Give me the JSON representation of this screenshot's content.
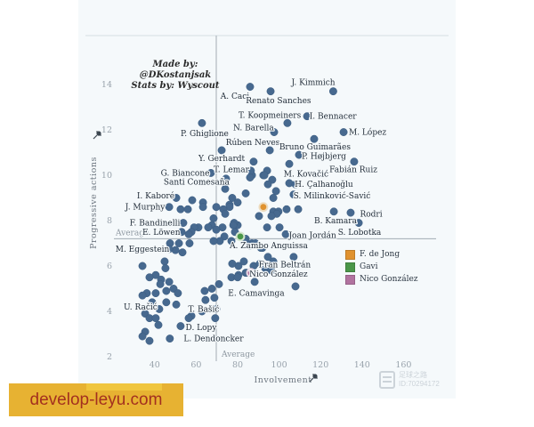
{
  "credit": {
    "lines": [
      "Made by:",
      "@DKostanjsak",
      "Stats by: Wyscout"
    ]
  },
  "watermark_site": {
    "text": "develop-leyu.com",
    "bg": "#e7b232",
    "bg_light": "#f0c63e",
    "text_color": "#a3301f"
  },
  "watermark_logo": {
    "line1": "足球之路",
    "line2": "ID:70294172"
  },
  "chart_data": {
    "type": "scatter",
    "xlabel": "Involvement",
    "ylabel": "Progressive actions",
    "x_ticks": [
      40,
      60,
      80,
      100,
      120,
      140,
      160
    ],
    "y_ticks": [
      2,
      4,
      6,
      8,
      10,
      12,
      14
    ],
    "xlim": [
      20,
      176
    ],
    "ylim": [
      1.8,
      16.2
    ],
    "grid": false,
    "average_x": {
      "value": 69.7,
      "label": "Average"
    },
    "average_y": {
      "value": 7.2,
      "label": "Average"
    },
    "dot_color": "#47698f",
    "legend": {
      "position": "center-right",
      "items": [
        {
          "label": "F. de Jong",
          "color": "#e0922f"
        },
        {
          "label": "Gavi",
          "color": "#4a9648"
        },
        {
          "label": "Nico González",
          "color": "#b1739f"
        }
      ]
    },
    "highlights": [
      {
        "name": "F. de Jong",
        "x": 92.4,
        "y": 8.6,
        "color": "#e0922f",
        "halo": "#eedcbe"
      },
      {
        "name": "Gavi",
        "x": 81.3,
        "y": 7.3,
        "color": "#4a9648",
        "halo": "#d5e6d0"
      },
      {
        "name": "Nico González",
        "x": 86.4,
        "y": 5.7,
        "color": "#b1739f",
        "halo": "#e8d6e2",
        "lx": 99.7,
        "ly": 5.65
      }
    ],
    "players": [
      {
        "name": "J. Kimmich",
        "x": 126.1,
        "y": 13.7,
        "lx": 116.5,
        "ly": 14.1
      },
      {
        "name": "A. Caci",
        "x": 86.0,
        "y": 13.9,
        "lx": 78.7,
        "ly": 13.5
      },
      {
        "name": "Renato Sanches",
        "x": 95.9,
        "y": 13.7,
        "lx": 99.7,
        "ly": 13.3
      },
      {
        "name": "T. Koopmeiners",
        "x": 104.0,
        "y": 12.3,
        "lx": 95.5,
        "ly": 12.65
      },
      {
        "name": "I. Bennacer",
        "x": 113.5,
        "y": 12.6,
        "lx": 126.0,
        "ly": 12.6
      },
      {
        "name": "P. Ghiglione",
        "x": 62.8,
        "y": 12.3,
        "lx": 64.1,
        "ly": 11.85
      },
      {
        "name": "N. Barella",
        "x": 97.6,
        "y": 11.9,
        "lx": 87.7,
        "ly": 12.1
      },
      {
        "name": "M. López",
        "x": 131.1,
        "y": 11.9,
        "lx": 142.7,
        "ly": 11.9
      },
      {
        "name": "Rúben Neves",
        "x": 95.5,
        "y": 11.1,
        "lx": 87.3,
        "ly": 11.45
      },
      {
        "name": "Bruno Guimarães",
        "x": 104.9,
        "y": 10.5,
        "lx": 117.3,
        "ly": 11.25
      },
      {
        "name": "Y. Gerhardt",
        "x": 72.3,
        "y": 11.1,
        "lx": 72.3,
        "ly": 10.75
      },
      {
        "name": "P. Højbjerg",
        "x": 109.6,
        "y": 10.9,
        "lx": 121.6,
        "ly": 10.85
      },
      {
        "name": "T. Lemar",
        "x": 87.7,
        "y": 10.6,
        "lx": 77.0,
        "ly": 10.25
      },
      {
        "name": "Fabián Ruiz",
        "x": 136.2,
        "y": 10.6,
        "lx": 135.8,
        "ly": 10.25
      },
      {
        "name": "G. Biancone",
        "x": 67.1,
        "y": 10.1,
        "lx": 54.7,
        "ly": 10.1
      },
      {
        "name": "Santi Comesaña",
        "x": 74.4,
        "y": 9.85,
        "lx": 60.2,
        "ly": 9.7
      },
      {
        "name": "M. Kovačić",
        "x": 104.9,
        "y": 9.65,
        "lx": 113.0,
        "ly": 10.05
      },
      {
        "name": "H. Çalhanoğlu",
        "x": 107.9,
        "y": 9.6,
        "lx": 121.6,
        "ly": 9.6
      },
      {
        "name": "S. Milinković-Savić",
        "x": 107.0,
        "y": 9.15,
        "lx": 125.5,
        "ly": 9.1
      },
      {
        "name": "I. Kaboré",
        "x": 50.4,
        "y": 9.0,
        "lx": 40.5,
        "ly": 9.1
      },
      {
        "name": "J. Murphy",
        "x": 47.0,
        "y": 8.6,
        "lx": 35.4,
        "ly": 8.6
      },
      {
        "name": "F. Bandinelli",
        "x": 53.8,
        "y": 7.9,
        "lx": 40.1,
        "ly": 7.9
      },
      {
        "name": "E. Löwen",
        "x": 53.0,
        "y": 7.5,
        "lx": 43.2,
        "ly": 7.5
      },
      {
        "name": "M. Eggestein",
        "x": 47.0,
        "y": 6.75,
        "lx": 34.1,
        "ly": 6.75
      },
      {
        "name": "Rodri",
        "x": 134.5,
        "y": 8.35,
        "lx": 144.4,
        "ly": 8.3
      },
      {
        "name": "B. Kamara",
        "x": 126.4,
        "y": 8.4,
        "lx": 127.2,
        "ly": 8.0
      },
      {
        "name": "S. Lobotka",
        "x": 138.4,
        "y": 7.9,
        "lx": 138.8,
        "ly": 7.5
      },
      {
        "name": "Joan Jordán",
        "x": 103.2,
        "y": 7.4,
        "lx": 116.1,
        "ly": 7.35
      },
      {
        "name": "A. Zambo Anguissa",
        "x": 88.6,
        "y": 7.0,
        "lx": 95.0,
        "ly": 6.9
      },
      {
        "name": "Fran Beltrán",
        "x": 90.7,
        "y": 6.1,
        "lx": 102.7,
        "ly": 6.05
      },
      {
        "name": "E. Camavinga",
        "x": 71.0,
        "y": 5.2,
        "lx": 89.0,
        "ly": 4.8
      },
      {
        "name": "U. Račić",
        "x": 42.2,
        "y": 4.1,
        "lx": 33.2,
        "ly": 4.2
      },
      {
        "name": "T. Bašić",
        "x": 69.2,
        "y": 3.7,
        "lx": 63.7,
        "ly": 4.1
      },
      {
        "name": "D. Lopy",
        "x": 52.5,
        "y": 3.35,
        "lx": 62.4,
        "ly": 3.3
      },
      {
        "name": "L. Dendoncker",
        "x": 47.3,
        "y": 2.8,
        "lx": 68.4,
        "ly": 2.8
      }
    ],
    "points": [
      [
        116.9,
        11.6
      ],
      [
        94.2,
        10.2
      ],
      [
        96.7,
        9.8
      ],
      [
        92.4,
        10.0
      ],
      [
        86.9,
        10.0
      ],
      [
        92.9,
        10.0
      ],
      [
        86.4,
        10.2
      ],
      [
        86.0,
        9.9
      ],
      [
        94.6,
        9.6
      ],
      [
        98.5,
        9.3
      ],
      [
        83.9,
        9.2
      ],
      [
        97.2,
        9.0
      ],
      [
        74.0,
        9.4
      ],
      [
        77.4,
        9.0
      ],
      [
        58.1,
        8.9
      ],
      [
        63.3,
        8.8
      ],
      [
        80.0,
        8.8
      ],
      [
        76.1,
        8.7
      ],
      [
        69.7,
        8.6
      ],
      [
        63.3,
        8.6
      ],
      [
        76.1,
        8.6
      ],
      [
        52.5,
        8.5
      ],
      [
        56.0,
        8.5
      ],
      [
        73.1,
        8.5
      ],
      [
        103.6,
        8.5
      ],
      [
        109.2,
        8.5
      ],
      [
        97.2,
        8.4
      ],
      [
        99.7,
        8.4
      ],
      [
        98.9,
        8.3
      ],
      [
        74.0,
        8.3
      ],
      [
        90.3,
        8.2
      ],
      [
        96.3,
        8.2
      ],
      [
        68.4,
        8.1
      ],
      [
        80.0,
        7.8
      ],
      [
        78.3,
        7.9
      ],
      [
        67.6,
        7.8
      ],
      [
        77.9,
        7.8
      ],
      [
        65.8,
        7.7
      ],
      [
        61.1,
        7.7
      ],
      [
        59.0,
        7.7
      ],
      [
        72.7,
        7.7
      ],
      [
        94.2,
        7.7
      ],
      [
        100.2,
        7.7
      ],
      [
        57.7,
        7.5
      ],
      [
        78.7,
        7.5
      ],
      [
        69.7,
        7.6
      ],
      [
        56.4,
        7.4
      ],
      [
        73.6,
        7.3
      ],
      [
        83.9,
        7.2
      ],
      [
        47.4,
        7.0
      ],
      [
        51.7,
        7.0
      ],
      [
        56.8,
        7.0
      ],
      [
        77.0,
        7.1
      ],
      [
        83.4,
        7.1
      ],
      [
        86.9,
        7.0
      ],
      [
        71.4,
        7.1
      ],
      [
        68.4,
        7.1
      ],
      [
        86.0,
        6.9
      ],
      [
        92.0,
        6.8
      ],
      [
        91.2,
        6.8
      ],
      [
        50.0,
        6.7
      ],
      [
        53.4,
        6.6
      ],
      [
        94.6,
        6.4
      ],
      [
        107.0,
        6.4
      ],
      [
        44.8,
        6.2
      ],
      [
        97.2,
        6.2
      ],
      [
        34.1,
        6.0
      ],
      [
        45.2,
        5.9
      ],
      [
        87.7,
        6.0
      ],
      [
        80.4,
        6.0
      ],
      [
        77.4,
        6.1
      ],
      [
        83.0,
        6.2
      ],
      [
        93.3,
        5.9
      ],
      [
        96.3,
        5.8
      ],
      [
        40.5,
        5.6
      ],
      [
        77.0,
        5.5
      ],
      [
        80.4,
        5.6
      ],
      [
        83.9,
        5.7
      ],
      [
        84.3,
        5.7
      ],
      [
        43.1,
        5.4
      ],
      [
        37.5,
        5.5
      ],
      [
        88.2,
        5.3
      ],
      [
        47.0,
        5.3
      ],
      [
        42.7,
        5.2
      ],
      [
        107.9,
        5.1
      ],
      [
        49.1,
        5.0
      ],
      [
        67.6,
        5.0
      ],
      [
        64.1,
        4.9
      ],
      [
        51.2,
        4.8
      ],
      [
        45.6,
        4.9
      ],
      [
        40.5,
        4.8
      ],
      [
        36.2,
        4.8
      ],
      [
        34.1,
        4.7
      ],
      [
        68.8,
        4.6
      ],
      [
        64.5,
        4.5
      ],
      [
        38.8,
        4.4
      ],
      [
        45.6,
        4.4
      ],
      [
        50.4,
        4.3
      ],
      [
        69.7,
        4.1
      ],
      [
        62.8,
        4.0
      ],
      [
        35.4,
        3.9
      ],
      [
        57.7,
        3.8
      ],
      [
        37.5,
        3.7
      ],
      [
        40.5,
        3.7
      ],
      [
        56.4,
        3.7
      ],
      [
        41.8,
        3.4
      ],
      [
        35.4,
        3.1
      ],
      [
        34.1,
        2.9
      ],
      [
        37.5,
        2.7
      ],
      [
        80.0,
        5.5
      ]
    ]
  }
}
